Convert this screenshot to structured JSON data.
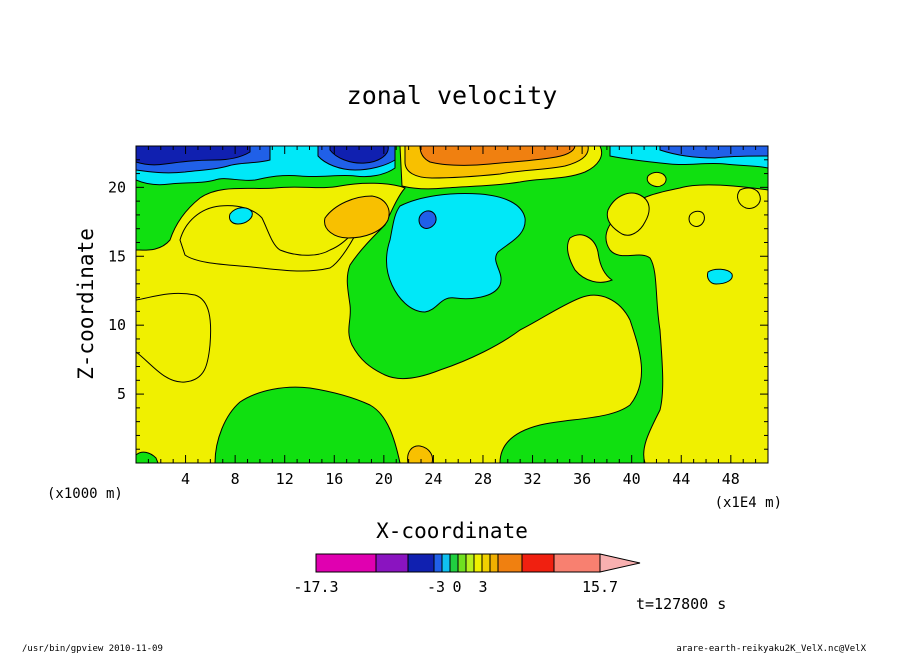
{
  "chart_data": {
    "type": "heatmap",
    "title": "zonal velocity",
    "xlabel": "X-coordinate",
    "ylabel": "Z-coordinate",
    "x_unit": "(x1E4 m)",
    "y_unit": "(x1000 m)",
    "xlim": [
      0,
      51
    ],
    "ylim": [
      0,
      23
    ],
    "x_ticks": [
      4,
      8,
      12,
      16,
      20,
      24,
      28,
      32,
      36,
      40,
      44,
      48
    ],
    "y_ticks": [
      5,
      10,
      15,
      20
    ],
    "colorbar": {
      "tick_labels": [
        "-17.3",
        "-3",
        "0",
        "3",
        "15.7"
      ],
      "colors": [
        "#e000b0",
        "#8a14c0",
        "#1020b0",
        "#2060e8",
        "#10c0f0",
        "#20d040",
        "#70e020",
        "#b8f020",
        "#f0f000",
        "#f0d000",
        "#f0b000",
        "#f08010",
        "#f02010",
        "#f88070",
        "#f8b0b0"
      ]
    },
    "region_colors": {
      "yellow": "#f0f000",
      "green": "#10e010",
      "cyan": "#00e8f8",
      "orange": "#f8c000",
      "orange_dark": "#f08010",
      "blue_dark": "#1020b0",
      "blue_mid": "#2060e8"
    }
  },
  "time_label": "t=127800 s",
  "footer": {
    "left": "/usr/bin/gpview   2010-11-09",
    "right": "arare-earth-reikyaku2K_VelX.nc@VelX"
  }
}
